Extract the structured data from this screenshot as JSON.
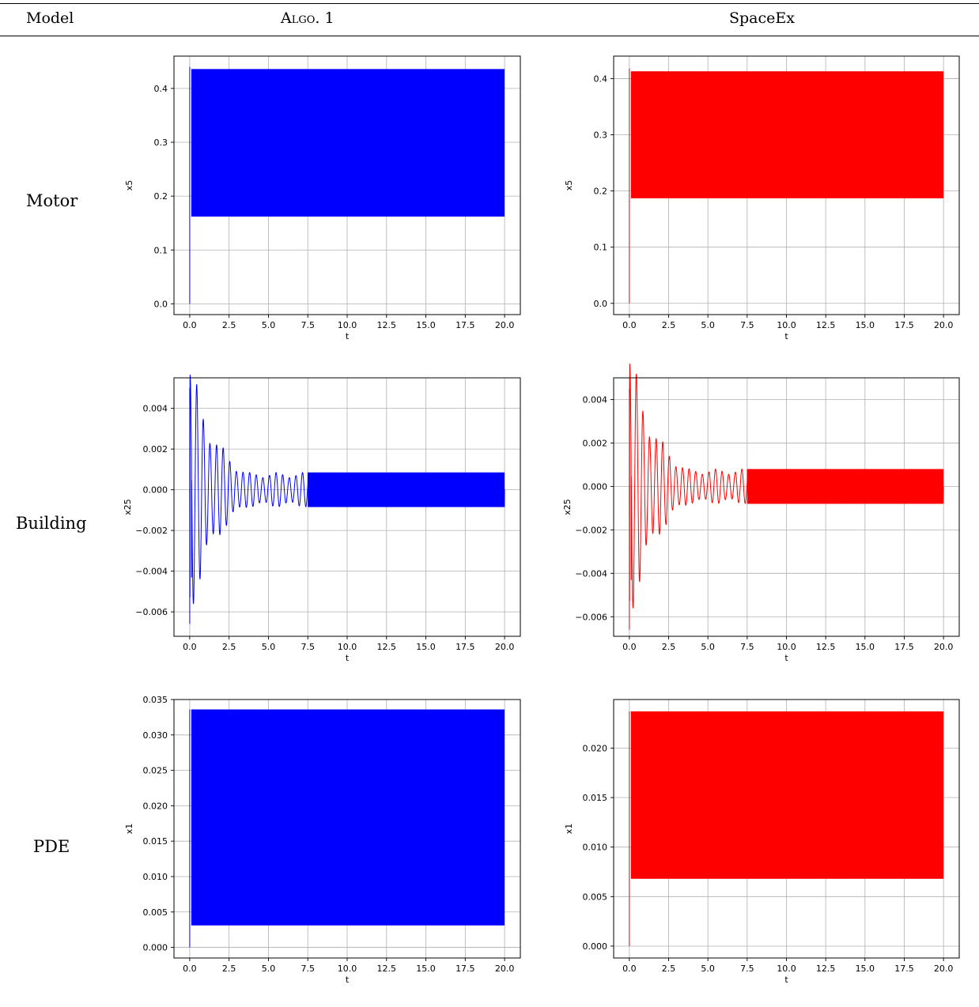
{
  "table": {
    "header_model": "Model",
    "header_algo": "Algo. 1",
    "header_spaceex": "SpaceEx",
    "rows": [
      "Motor",
      "Building",
      "PDE"
    ]
  },
  "colors": {
    "algo": "#0000ff",
    "spaceex": "#ff0000",
    "grid": "#b0b0b0"
  },
  "chart_data": [
    {
      "id": "motor-algo1",
      "type": "line",
      "model": "Motor",
      "method": "Algo. 1",
      "xlabel": "t",
      "ylabel": "x5",
      "xlim": [
        -1.0,
        21.0
      ],
      "ylim": [
        -0.02,
        0.46
      ],
      "xticks": [
        0.0,
        2.5,
        5.0,
        7.5,
        10.0,
        12.5,
        15.0,
        17.5,
        20.0
      ],
      "xtick_labels": [
        "0.0",
        "2.5",
        "5.0",
        "7.5",
        "10.0",
        "12.5",
        "15.0",
        "17.5",
        "20.0"
      ],
      "yticks": [
        0.0,
        0.1,
        0.2,
        0.3,
        0.4
      ],
      "ytick_labels": [
        "0.0",
        "0.1",
        "0.2",
        "0.3",
        "0.4"
      ],
      "grid": true,
      "color": "#0000ff",
      "series": [
        {
          "kind": "band",
          "t0": 0.0,
          "t_end": 20.0,
          "start": 0.0,
          "spike": 0.44,
          "upper": 0.436,
          "lower": 0.162
        }
      ]
    },
    {
      "id": "motor-spaceex",
      "type": "line",
      "model": "Motor",
      "method": "SpaceEx",
      "xlabel": "t",
      "ylabel": "x5",
      "xlim": [
        -1.0,
        21.0
      ],
      "ylim": [
        -0.02,
        0.44
      ],
      "xticks": [
        0.0,
        2.5,
        5.0,
        7.5,
        10.0,
        12.5,
        15.0,
        17.5,
        20.0
      ],
      "xtick_labels": [
        "0.0",
        "2.5",
        "5.0",
        "7.5",
        "10.0",
        "12.5",
        "15.0",
        "17.5",
        "20.0"
      ],
      "yticks": [
        0.0,
        0.1,
        0.2,
        0.3,
        0.4
      ],
      "ytick_labels": [
        "0.0",
        "0.1",
        "0.2",
        "0.3",
        "0.4"
      ],
      "grid": true,
      "color": "#ff0000",
      "series": [
        {
          "kind": "band",
          "t0": 0.0,
          "t_end": 20.0,
          "start": 0.0,
          "spike": 0.418,
          "upper": 0.413,
          "lower": 0.187
        }
      ]
    },
    {
      "id": "building-algo1",
      "type": "line",
      "model": "Building",
      "method": "Algo. 1",
      "xlabel": "t",
      "ylabel": "x25",
      "xlim": [
        -1.0,
        21.0
      ],
      "ylim": [
        -0.0072,
        0.0055
      ],
      "xticks": [
        0.0,
        2.5,
        5.0,
        7.5,
        10.0,
        12.5,
        15.0,
        17.5,
        20.0
      ],
      "xtick_labels": [
        "0.0",
        "2.5",
        "5.0",
        "7.5",
        "10.0",
        "12.5",
        "15.0",
        "17.5",
        "20.0"
      ],
      "yticks": [
        -0.006,
        -0.004,
        -0.002,
        0.0,
        0.002,
        0.004
      ],
      "ytick_labels": [
        "−0.006",
        "−0.004",
        "−0.002",
        "0.000",
        "0.002",
        "0.004"
      ],
      "grid": true,
      "color": "#0000ff",
      "series": [
        {
          "kind": "oscillation",
          "t0": 0.0,
          "t_end": 20.0,
          "max": 0.005,
          "min": -0.0066,
          "decay": 0.55,
          "period": 0.42,
          "envelope": 0.00085,
          "settle_time": 7.5
        }
      ]
    },
    {
      "id": "building-spaceex",
      "type": "line",
      "model": "Building",
      "method": "SpaceEx",
      "xlabel": "t",
      "ylabel": "x25",
      "xlim": [
        -1.0,
        21.0
      ],
      "ylim": [
        -0.0069,
        0.005
      ],
      "xticks": [
        0.0,
        2.5,
        5.0,
        7.5,
        10.0,
        12.5,
        15.0,
        17.5,
        20.0
      ],
      "xtick_labels": [
        "0.0",
        "2.5",
        "5.0",
        "7.5",
        "10.0",
        "12.5",
        "15.0",
        "17.5",
        "20.0"
      ],
      "yticks": [
        -0.006,
        -0.004,
        -0.002,
        0.0,
        0.002,
        0.004
      ],
      "ytick_labels": [
        "−0.006",
        "−0.004",
        "−0.002",
        "0.000",
        "0.002",
        "0.004"
      ],
      "grid": true,
      "color": "#ff0000",
      "series": [
        {
          "kind": "oscillation",
          "t0": 0.0,
          "t_end": 20.0,
          "max": 0.0045,
          "min": -0.0066,
          "decay": 0.55,
          "period": 0.42,
          "envelope": 0.0008,
          "settle_time": 7.5
        }
      ]
    },
    {
      "id": "pde-algo1",
      "type": "line",
      "model": "PDE",
      "method": "Algo. 1",
      "xlabel": "t",
      "ylabel": "x1",
      "xlim": [
        -1.0,
        21.0
      ],
      "ylim": [
        -0.0015,
        0.035
      ],
      "xticks": [
        0.0,
        2.5,
        5.0,
        7.5,
        10.0,
        12.5,
        15.0,
        17.5,
        20.0
      ],
      "xtick_labels": [
        "0.0",
        "2.5",
        "5.0",
        "7.5",
        "10.0",
        "12.5",
        "15.0",
        "17.5",
        "20.0"
      ],
      "yticks": [
        0.0,
        0.005,
        0.01,
        0.015,
        0.02,
        0.025,
        0.03,
        0.035
      ],
      "ytick_labels": [
        "0.000",
        "0.005",
        "0.010",
        "0.015",
        "0.020",
        "0.025",
        "0.030",
        "0.035"
      ],
      "grid": true,
      "color": "#0000ff",
      "series": [
        {
          "kind": "band",
          "t0": 0.0,
          "t_end": 20.0,
          "start": 0.0,
          "spike": 0.0336,
          "upper": 0.0336,
          "lower": 0.0031
        }
      ]
    },
    {
      "id": "pde-spaceex",
      "type": "line",
      "model": "PDE",
      "method": "SpaceEx",
      "xlabel": "t",
      "ylabel": "x1",
      "xlim": [
        -1.0,
        21.0
      ],
      "ylim": [
        -0.0012,
        0.0249
      ],
      "xticks": [
        0.0,
        2.5,
        5.0,
        7.5,
        10.0,
        12.5,
        15.0,
        17.5,
        20.0
      ],
      "xtick_labels": [
        "0.0",
        "2.5",
        "5.0",
        "7.5",
        "10.0",
        "12.5",
        "15.0",
        "17.5",
        "20.0"
      ],
      "yticks": [
        0.0,
        0.005,
        0.01,
        0.015,
        0.02
      ],
      "ytick_labels": [
        "0.000",
        "0.005",
        "0.010",
        "0.015",
        "0.020"
      ],
      "grid": true,
      "color": "#ff0000",
      "series": [
        {
          "kind": "band",
          "t0": 0.0,
          "t_end": 20.0,
          "start": 0.0,
          "spike": 0.0237,
          "upper": 0.0237,
          "lower": 0.0068
        }
      ]
    }
  ]
}
